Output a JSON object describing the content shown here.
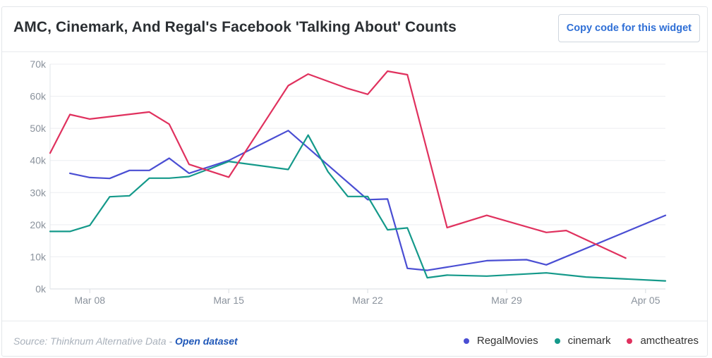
{
  "header": {
    "title": "AMC, Cinemark, And Regal's Facebook 'Talking About' Counts",
    "copy_button_label": "Copy code for this widget"
  },
  "footer": {
    "source_prefix": "Source: Thinknum Alternative Data - ",
    "source_link_label": "Open dataset"
  },
  "colors": {
    "RegalMovies": "#4a4ed3",
    "cinemark": "#14998a",
    "amctheatres": "#e0315e",
    "grid": "#eceef1",
    "axis_text": "#8a929c"
  },
  "chart_data": {
    "type": "line",
    "title": "AMC, Cinemark, And Regal's Facebook 'Talking About' Counts",
    "xlabel": "",
    "ylabel": "",
    "x_range": [
      "2020-03-06",
      "2020-04-06"
    ],
    "ylim": [
      0,
      70000
    ],
    "y_ticks": [
      0,
      10000,
      20000,
      30000,
      40000,
      50000,
      60000,
      70000
    ],
    "y_tick_labels": [
      "0k",
      "10k",
      "20k",
      "30k",
      "40k",
      "50k",
      "60k",
      "70k"
    ],
    "x_ticks": [
      "2020-03-08",
      "2020-03-15",
      "2020-03-22",
      "2020-03-29",
      "2020-04-05"
    ],
    "x_tick_labels": [
      "Mar 08",
      "Mar 15",
      "Mar 22",
      "Mar 29",
      "Apr 05"
    ],
    "grid": "horizontal",
    "legend_position": "bottom-right",
    "series": [
      {
        "name": "RegalMovies",
        "points": [
          [
            "2020-03-07",
            36000
          ],
          [
            "2020-03-08",
            34700
          ],
          [
            "2020-03-09",
            34400
          ],
          [
            "2020-03-10",
            36900
          ],
          [
            "2020-03-11",
            36900
          ],
          [
            "2020-03-12",
            40700
          ],
          [
            "2020-03-13",
            36000
          ],
          [
            "2020-03-15",
            40000
          ],
          [
            "2020-03-18",
            49300
          ],
          [
            "2020-03-22",
            27800
          ],
          [
            "2020-03-23",
            28000
          ],
          [
            "2020-03-24",
            6400
          ],
          [
            "2020-03-25",
            5800
          ],
          [
            "2020-03-28",
            8800
          ],
          [
            "2020-03-30",
            9100
          ],
          [
            "2020-03-31",
            7500
          ],
          [
            "2020-04-06",
            22900
          ]
        ]
      },
      {
        "name": "cinemark",
        "points": [
          [
            "2020-03-06",
            17900
          ],
          [
            "2020-03-07",
            17900
          ],
          [
            "2020-03-08",
            19800
          ],
          [
            "2020-03-09",
            28700
          ],
          [
            "2020-03-10",
            29000
          ],
          [
            "2020-03-11",
            34500
          ],
          [
            "2020-03-12",
            34500
          ],
          [
            "2020-03-13",
            35000
          ],
          [
            "2020-03-15",
            39700
          ],
          [
            "2020-03-18",
            37200
          ],
          [
            "2020-03-19",
            47900
          ],
          [
            "2020-03-20",
            36500
          ],
          [
            "2020-03-21",
            28800
          ],
          [
            "2020-03-22",
            28800
          ],
          [
            "2020-03-23",
            18400
          ],
          [
            "2020-03-24",
            19000
          ],
          [
            "2020-03-25",
            3500
          ],
          [
            "2020-03-26",
            4300
          ],
          [
            "2020-03-28",
            4000
          ],
          [
            "2020-03-31",
            5000
          ],
          [
            "2020-04-02",
            3700
          ],
          [
            "2020-04-06",
            2500
          ]
        ]
      },
      {
        "name": "amctheatres",
        "points": [
          [
            "2020-03-06",
            42300
          ],
          [
            "2020-03-07",
            54300
          ],
          [
            "2020-03-08",
            52900
          ],
          [
            "2020-03-11",
            55100
          ],
          [
            "2020-03-12",
            51300
          ],
          [
            "2020-03-13",
            38800
          ],
          [
            "2020-03-15",
            34800
          ],
          [
            "2020-03-18",
            63300
          ],
          [
            "2020-03-19",
            66900
          ],
          [
            "2020-03-21",
            62400
          ],
          [
            "2020-03-22",
            60600
          ],
          [
            "2020-03-23",
            67800
          ],
          [
            "2020-03-24",
            66700
          ],
          [
            "2020-03-26",
            19100
          ],
          [
            "2020-03-28",
            22900
          ],
          [
            "2020-03-31",
            17600
          ],
          [
            "2020-04-01",
            18200
          ],
          [
            "2020-04-04",
            9600
          ]
        ]
      }
    ]
  }
}
